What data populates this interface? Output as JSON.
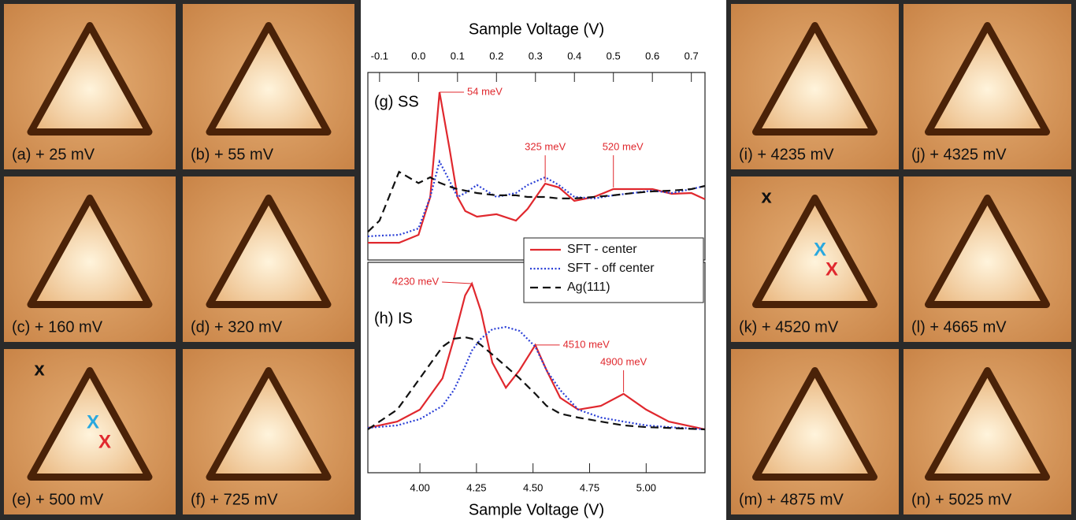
{
  "panels_left": [
    {
      "label": "(a) + 25 mV"
    },
    {
      "label": "(b) + 55 mV"
    },
    {
      "label": "(c) + 160 mV"
    },
    {
      "label": "(d) + 320 mV"
    },
    {
      "label": "(e) + 500 mV",
      "markers": [
        {
          "text": "x",
          "color": "#111111"
        },
        {
          "text": "X",
          "color": "#29a8df"
        },
        {
          "text": "X",
          "color": "#e0282e"
        }
      ]
    },
    {
      "label": "(f) + 725 mV"
    }
  ],
  "panels_right": [
    {
      "label": "(i) + 4235 mV"
    },
    {
      "label": "(j) + 4325 mV"
    },
    {
      "label": "(k) + 4520 mV",
      "markers": [
        {
          "text": "x",
          "color": "#111111"
        },
        {
          "text": "X",
          "color": "#29a8df"
        },
        {
          "text": "X",
          "color": "#e0282e"
        }
      ]
    },
    {
      "label": "(l) + 4665 mV"
    },
    {
      "label": "(m) + 4875 mV"
    },
    {
      "label": "(n) + 5025 mV"
    }
  ],
  "chart_data": [
    {
      "type": "line",
      "title": "(g) SS",
      "xlabel": "Sample Voltage (V)",
      "x": [
        -0.13,
        -0.1,
        -0.05,
        0,
        0.03,
        0.054,
        0.08,
        0.1,
        0.12,
        0.15,
        0.2,
        0.25,
        0.28,
        0.325,
        0.36,
        0.4,
        0.45,
        0.5,
        0.55,
        0.6,
        0.65,
        0.7,
        0.735
      ],
      "xlim": [
        -0.13,
        0.735
      ],
      "xticks": [
        -0.1,
        {
          "value": 0,
          "label": "0.0"
        },
        0.1,
        0.2,
        0.3,
        0.4,
        0.5,
        0.6,
        0.7
      ],
      "ylim": [
        0,
        1
      ],
      "series": [
        {
          "name": "SFT - center",
          "color": "#e0282e",
          "dash": "solid",
          "values": [
            0.092,
            0.092,
            0.092,
            0.134,
            0.336,
            0.895,
            0.588,
            0.336,
            0.261,
            0.231,
            0.244,
            0.21,
            0.273,
            0.407,
            0.387,
            0.315,
            0.336,
            0.378,
            0.378,
            0.378,
            0.353,
            0.357,
            0.324
          ]
        },
        {
          "name": "SFT - off center",
          "color": "#2a3fd6",
          "dash": "dotted",
          "values": [
            0.126,
            0.13,
            0.134,
            0.168,
            0.336,
            0.525,
            0.42,
            0.336,
            0.357,
            0.4,
            0.336,
            0.357,
            0.4,
            0.441,
            0.4,
            0.336,
            0.328,
            0.345,
            0.357,
            0.37,
            0.357,
            0.378,
            0.395
          ]
        },
        {
          "name": "Ag(111)",
          "color": "#111111",
          "dash": "dashed",
          "values": [
            0.15,
            0.21,
            0.47,
            0.41,
            0.441,
            0.412,
            0.391,
            0.378,
            0.37,
            0.357,
            0.345,
            0.345,
            0.336,
            0.336,
            0.328,
            0.328,
            0.336,
            0.345,
            0.357,
            0.366,
            0.37,
            0.378,
            0.395
          ]
        }
      ],
      "annotations": [
        "54 meV",
        "325 meV",
        "520 meV"
      ]
    },
    {
      "type": "line",
      "title": "(h) IS",
      "xlabel": "Sample Voltage (V)",
      "x": [
        3.77,
        3.9,
        4.0,
        4.1,
        4.15,
        4.2,
        4.23,
        4.27,
        4.32,
        4.38,
        4.44,
        4.51,
        4.56,
        4.62,
        4.7,
        4.8,
        4.9,
        5.0,
        5.1,
        5.26
      ],
      "xlim": [
        3.77,
        5.26
      ],
      "xticks": [
        {
          "value": 4,
          "label": "4.00"
        },
        4.25,
        {
          "value": 4.5,
          "label": "4.50"
        },
        4.75,
        {
          "value": 5,
          "label": "5.00"
        }
      ],
      "ylim": [
        0,
        1
      ],
      "series": [
        {
          "color": "#e0282e",
          "dash": "solid",
          "values": [
            0.213,
            0.243,
            0.3,
            0.449,
            0.637,
            0.843,
            0.899,
            0.768,
            0.524,
            0.404,
            0.487,
            0.607,
            0.487,
            0.356,
            0.3,
            0.318,
            0.375,
            0.3,
            0.243,
            0.206
          ]
        },
        {
          "color": "#2a3fd6",
          "dash": "dotted",
          "values": [
            0.213,
            0.225,
            0.255,
            0.318,
            0.393,
            0.506,
            0.581,
            0.637,
            0.682,
            0.693,
            0.674,
            0.599,
            0.487,
            0.393,
            0.3,
            0.262,
            0.243,
            0.225,
            0.217,
            0.206
          ]
        },
        {
          "color": "#111111",
          "dash": "dashed",
          "values": [
            0.206,
            0.3,
            0.449,
            0.599,
            0.637,
            0.644,
            0.637,
            0.607,
            0.562,
            0.506,
            0.449,
            0.375,
            0.318,
            0.281,
            0.262,
            0.243,
            0.225,
            0.217,
            0.213,
            0.206
          ]
        }
      ],
      "annotations": [
        "4230 meV",
        "4510 meV",
        "4900 meV"
      ]
    }
  ]
}
